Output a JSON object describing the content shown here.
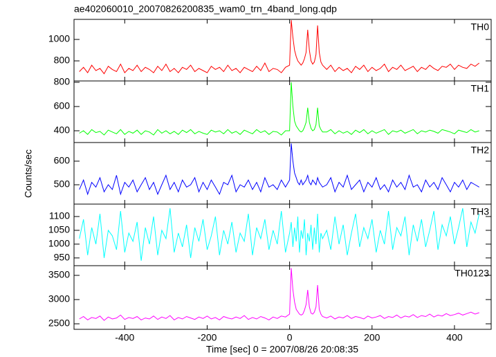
{
  "chart_data": [
    {
      "type": "line",
      "title": "ae402060010_20070826200835_wam0_trn_4band_long.qdp",
      "xlim": [
        -523,
        489
      ],
      "ylim": [
        613,
        1187
      ],
      "yticks": [
        800,
        1000
      ],
      "x": [
        -510,
        -500,
        -490,
        -480,
        -470,
        -460,
        -450,
        -440,
        -430,
        -420,
        -410,
        -400,
        -390,
        -380,
        -370,
        -360,
        -350,
        -340,
        -330,
        -320,
        -310,
        -300,
        -290,
        -280,
        -270,
        -260,
        -250,
        -240,
        -230,
        -220,
        -210,
        -200,
        -190,
        -180,
        -170,
        -160,
        -150,
        -140,
        -130,
        -120,
        -110,
        -100,
        -90,
        -80,
        -70,
        -60,
        -50,
        -40,
        -30,
        -20,
        -10,
        0,
        4,
        8,
        12,
        16,
        20,
        24,
        28,
        32,
        36,
        40,
        44,
        48,
        52,
        56,
        60,
        64,
        68,
        72,
        76,
        80,
        90,
        100,
        110,
        120,
        130,
        140,
        150,
        160,
        170,
        180,
        190,
        200,
        210,
        220,
        230,
        240,
        250,
        260,
        270,
        280,
        290,
        300,
        310,
        320,
        330,
        340,
        350,
        360,
        370,
        380,
        390,
        400,
        410,
        420,
        430,
        440,
        450,
        460
      ],
      "series": [
        {
          "name": "TH0",
          "color": "#ff0000",
          "values": [
            700,
            740,
            690,
            760,
            710,
            730,
            680,
            750,
            720,
            700,
            770,
            690,
            730,
            710,
            760,
            700,
            740,
            720,
            690,
            750,
            710,
            770,
            700,
            730,
            690,
            740,
            720,
            760,
            700,
            730,
            710,
            690,
            750,
            720,
            740,
            700,
            760,
            710,
            730,
            690,
            740,
            720,
            700,
            750,
            710,
            780,
            700,
            730,
            720,
            690,
            740,
            760,
            1180,
            1020,
            900,
            840,
            800,
            780,
            760,
            780,
            820,
            880,
            1090,
            900,
            800,
            770,
            790,
            860,
            1130,
            880,
            790,
            760,
            720,
            760,
            700,
            740,
            710,
            730,
            690,
            750,
            720,
            760,
            700,
            740,
            710,
            730,
            770,
            700,
            740,
            720,
            760,
            710,
            730,
            750,
            700,
            740,
            720,
            760,
            730,
            710,
            750,
            740,
            770,
            720,
            760,
            740,
            730,
            770,
            750,
            780
          ]
        }
      ]
    },
    {
      "type": "line",
      "xlim": [
        -523,
        489
      ],
      "ylim": [
        303,
        811
      ],
      "yticks": [
        400,
        600,
        800
      ],
      "x": [
        -510,
        -500,
        -490,
        -480,
        -470,
        -460,
        -450,
        -440,
        -430,
        -420,
        -410,
        -400,
        -390,
        -380,
        -370,
        -360,
        -350,
        -340,
        -330,
        -320,
        -310,
        -300,
        -290,
        -280,
        -270,
        -260,
        -250,
        -240,
        -230,
        -220,
        -210,
        -200,
        -190,
        -180,
        -170,
        -160,
        -150,
        -140,
        -130,
        -120,
        -110,
        -100,
        -90,
        -80,
        -70,
        -60,
        -50,
        -40,
        -30,
        -20,
        -10,
        0,
        4,
        8,
        12,
        16,
        20,
        24,
        28,
        32,
        36,
        40,
        44,
        48,
        52,
        56,
        60,
        64,
        68,
        72,
        76,
        80,
        90,
        100,
        110,
        120,
        130,
        140,
        150,
        160,
        170,
        180,
        190,
        200,
        210,
        220,
        230,
        240,
        250,
        260,
        270,
        280,
        290,
        300,
        310,
        320,
        330,
        340,
        350,
        360,
        370,
        380,
        390,
        400,
        410,
        420,
        430,
        440,
        450,
        460
      ],
      "series": [
        {
          "name": "TH1",
          "color": "#00ff00",
          "values": [
            380,
            400,
            370,
            410,
            385,
            395,
            365,
            405,
            390,
            375,
            410,
            370,
            395,
            380,
            405,
            370,
            400,
            390,
            365,
            410,
            380,
            400,
            375,
            395,
            370,
            405,
            385,
            410,
            375,
            395,
            380,
            370,
            405,
            390,
            400,
            375,
            410,
            380,
            395,
            370,
            405,
            390,
            375,
            410,
            385,
            400,
            370,
            395,
            390,
            365,
            400,
            400,
            800,
            600,
            480,
            440,
            420,
            400,
            390,
            400,
            430,
            470,
            590,
            470,
            420,
            400,
            410,
            450,
            590,
            440,
            410,
            390,
            390,
            410,
            375,
            400,
            380,
            395,
            370,
            405,
            385,
            410,
            375,
            400,
            380,
            395,
            410,
            370,
            400,
            390,
            405,
            380,
            395,
            410,
            375,
            400,
            390,
            405,
            395,
            380,
            410,
            400,
            390,
            375,
            405,
            395,
            385,
            410,
            390,
            400
          ]
        }
      ]
    },
    {
      "type": "line",
      "ylabel": "Counts/sec",
      "xlim": [
        -523,
        489
      ],
      "ylim": [
        418,
        679
      ],
      "yticks": [
        500,
        600
      ],
      "x": [
        -510,
        -500,
        -490,
        -480,
        -470,
        -460,
        -450,
        -440,
        -430,
        -420,
        -410,
        -400,
        -390,
        -380,
        -370,
        -360,
        -350,
        -340,
        -330,
        -320,
        -310,
        -300,
        -290,
        -280,
        -270,
        -260,
        -250,
        -240,
        -230,
        -220,
        -210,
        -200,
        -190,
        -180,
        -170,
        -160,
        -150,
        -140,
        -130,
        -120,
        -110,
        -100,
        -90,
        -80,
        -70,
        -60,
        -50,
        -40,
        -30,
        -20,
        -10,
        0,
        4,
        8,
        12,
        16,
        20,
        24,
        28,
        32,
        36,
        40,
        44,
        48,
        52,
        56,
        60,
        64,
        68,
        72,
        76,
        80,
        90,
        100,
        110,
        120,
        130,
        140,
        150,
        160,
        170,
        180,
        190,
        200,
        210,
        220,
        230,
        240,
        250,
        260,
        270,
        280,
        290,
        300,
        310,
        320,
        330,
        340,
        350,
        360,
        370,
        380,
        390,
        400,
        410,
        420,
        430,
        440,
        450,
        460
      ],
      "series": [
        {
          "name": "TH2",
          "color": "#0000ff",
          "values": [
            480,
            520,
            460,
            510,
            490,
            530,
            470,
            500,
            480,
            540,
            460,
            510,
            490,
            520,
            470,
            500,
            530,
            480,
            510,
            460,
            500,
            540,
            480,
            510,
            470,
            520,
            490,
            500,
            530,
            470,
            510,
            480,
            520,
            490,
            460,
            510,
            500,
            540,
            470,
            500,
            490,
            520,
            480,
            510,
            470,
            530,
            490,
            500,
            480,
            520,
            490,
            520,
            675,
            600,
            550,
            530,
            510,
            500,
            520,
            500,
            510,
            520,
            540,
            510,
            500,
            520,
            510,
            500,
            530,
            510,
            500,
            490,
            500,
            530,
            470,
            510,
            490,
            540,
            480,
            500,
            520,
            470,
            510,
            490,
            530,
            480,
            500,
            470,
            520,
            490,
            510,
            480,
            540,
            490,
            500,
            470,
            520,
            490,
            510,
            480,
            530,
            500,
            470,
            510,
            490,
            520,
            480,
            510,
            500,
            490
          ]
        }
      ]
    },
    {
      "type": "line",
      "xlim": [
        -523,
        489
      ],
      "ylim": [
        922,
        1145
      ],
      "yticks": [
        950,
        1000,
        1050,
        1100
      ],
      "x": [
        -510,
        -500,
        -490,
        -480,
        -470,
        -460,
        -450,
        -440,
        -430,
        -420,
        -410,
        -400,
        -390,
        -380,
        -370,
        -360,
        -350,
        -340,
        -330,
        -320,
        -310,
        -300,
        -290,
        -280,
        -270,
        -260,
        -250,
        -240,
        -230,
        -220,
        -210,
        -200,
        -190,
        -180,
        -170,
        -160,
        -150,
        -140,
        -130,
        -120,
        -110,
        -100,
        -90,
        -80,
        -70,
        -60,
        -50,
        -40,
        -30,
        -20,
        -10,
        0,
        4,
        8,
        12,
        16,
        20,
        24,
        28,
        32,
        36,
        40,
        44,
        48,
        52,
        56,
        60,
        64,
        68,
        72,
        76,
        80,
        90,
        100,
        110,
        120,
        130,
        140,
        150,
        160,
        170,
        180,
        190,
        200,
        210,
        220,
        230,
        240,
        250,
        260,
        270,
        280,
        290,
        300,
        310,
        320,
        330,
        340,
        350,
        360,
        370,
        380,
        390,
        400,
        410,
        420,
        430,
        440,
        450,
        460
      ],
      "series": [
        {
          "name": "TH3",
          "color": "#00ffff",
          "values": [
            1020,
            1090,
            960,
            1060,
            1000,
            1110,
            950,
            1050,
            1030,
            980,
            1120,
            970,
            1040,
            1010,
            1080,
            940,
            1060,
            1000,
            1100,
            960,
            1050,
            1020,
            1130,
            970,
            1040,
            990,
            1070,
            950,
            1060,
            1010,
            1090,
            980,
            1030,
            1100,
            960,
            1050,
            1000,
            1080,
            970,
            1040,
            1010,
            1110,
            960,
            1060,
            1020,
            1090,
            980,
            1050,
            1000,
            1120,
            970,
            1040,
            1080,
            990,
            1060,
            1010,
            1100,
            970,
            1050,
            1020,
            1090,
            960,
            1040,
            1010,
            1070,
            980,
            1060,
            1000,
            1110,
            970,
            1040,
            1020,
            1050,
            980,
            1100,
            1000,
            1070,
            960,
            1040,
            1110,
            990,
            1060,
            1020,
            1090,
            970,
            1050,
            1000,
            1120,
            980,
            1060,
            1030,
            1100,
            960,
            1070,
            1010,
            1090,
            990,
            1050,
            1120,
            980,
            1070,
            1030,
            1100,
            1000,
            1060,
            1130,
            990,
            1080,
            1040,
            1110
          ]
        }
      ]
    },
    {
      "type": "line",
      "xlabel": "Time [sec] 0 = 2007/08/26 20:08:35",
      "xlim": [
        -523,
        489
      ],
      "xticks": [
        -400,
        -200,
        0,
        200,
        400
      ],
      "ylim": [
        2386,
        3700
      ],
      "yticks": [
        2500,
        3000,
        3500
      ],
      "x": [
        -510,
        -500,
        -490,
        -480,
        -470,
        -460,
        -450,
        -440,
        -430,
        -420,
        -410,
        -400,
        -390,
        -380,
        -370,
        -360,
        -350,
        -340,
        -330,
        -320,
        -310,
        -300,
        -290,
        -280,
        -270,
        -260,
        -250,
        -240,
        -230,
        -220,
        -210,
        -200,
        -190,
        -180,
        -170,
        -160,
        -150,
        -140,
        -130,
        -120,
        -110,
        -100,
        -90,
        -80,
        -70,
        -60,
        -50,
        -40,
        -30,
        -20,
        -10,
        0,
        4,
        8,
        12,
        16,
        20,
        24,
        28,
        32,
        36,
        40,
        44,
        48,
        52,
        56,
        60,
        64,
        68,
        72,
        76,
        80,
        90,
        100,
        110,
        120,
        130,
        140,
        150,
        160,
        170,
        180,
        190,
        200,
        210,
        220,
        230,
        240,
        250,
        260,
        270,
        280,
        290,
        300,
        310,
        320,
        330,
        340,
        350,
        360,
        370,
        380,
        390,
        400,
        410,
        420,
        430,
        440,
        450,
        460
      ],
      "series": [
        {
          "name": "TH0123",
          "color": "#ff00ff",
          "values": [
            2600,
            2650,
            2580,
            2630,
            2610,
            2660,
            2570,
            2640,
            2600,
            2620,
            2680,
            2590,
            2630,
            2610,
            2650,
            2580,
            2620,
            2600,
            2660,
            2590,
            2640,
            2610,
            2670,
            2580,
            2630,
            2600,
            2650,
            2620,
            2590,
            2640,
            2610,
            2660,
            2600,
            2630,
            2580,
            2650,
            2620,
            2600,
            2640,
            2610,
            2670,
            2590,
            2630,
            2600,
            2650,
            2620,
            2580,
            2640,
            2610,
            2660,
            2640,
            2700,
            3650,
            3200,
            2950,
            2800,
            2750,
            2700,
            2680,
            2700,
            2780,
            2900,
            3200,
            2850,
            2720,
            2700,
            2740,
            2850,
            3300,
            2800,
            2700,
            2650,
            2620,
            2660,
            2600,
            2640,
            2620,
            2670,
            2610,
            2650,
            2630,
            2600,
            2660,
            2620,
            2640,
            2670,
            2610,
            2650,
            2630,
            2680,
            2620,
            2660,
            2640,
            2690,
            2630,
            2670,
            2650,
            2700,
            2640,
            2680,
            2660,
            2710,
            2670,
            2690,
            2720,
            2680,
            2710,
            2740,
            2700,
            2730
          ]
        }
      ]
    }
  ]
}
